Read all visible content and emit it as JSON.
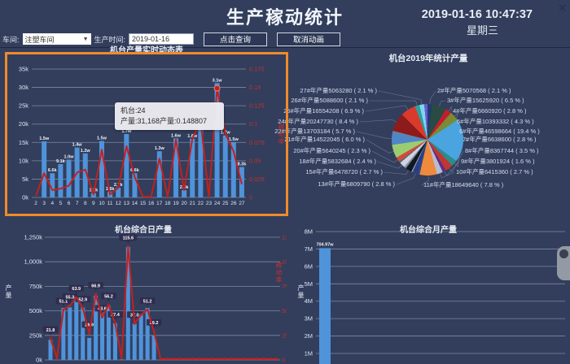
{
  "icons": {
    "close": "✕",
    "caret": "▼",
    "circle": ""
  },
  "header": {
    "title": "生产稼动统计",
    "datetime": "2019-01-16 10:47:37",
    "weekday": "星期三"
  },
  "controls": {
    "workshop_label": "车间:",
    "workshop_value": "注塑车间",
    "time_label": "生产时间:",
    "time_value": "2019-01-16",
    "query_button": "点击查询",
    "cancel_button": "取消动画"
  },
  "tooltip": {
    "line1": "机台:24",
    "line2": "产量:31,168产量:0.148807"
  },
  "chart_data": [
    {
      "id": "realtime",
      "type": "bar+line",
      "title": "机台产量实时动态表",
      "categories": [
        "2",
        "3",
        "4",
        "5",
        "6",
        "7",
        "8",
        "9",
        "10",
        "11",
        "12",
        "13",
        "14",
        "15",
        "16",
        "17",
        "18",
        "19",
        "20",
        "21",
        "22",
        "23",
        "24",
        "25",
        "26",
        "27"
      ],
      "bar_series": {
        "name": "产量",
        "values": [
          0,
          15300,
          6600,
          9100,
          10300,
          13600,
          12000,
          1200,
          15400,
          1600,
          2700,
          17300,
          6600,
          0,
          0,
          12600,
          0,
          16100,
          2000,
          16000,
          21000,
          0,
          31168,
          16900,
          15100,
          8300
        ],
        "labels": [
          "",
          "1.5w",
          "6.6k",
          "9.1k",
          "1.0w",
          "1.4w",
          "1.2w",
          "1.2k",
          "1.5w",
          "1.6k",
          "2.7k",
          "1.7w",
          "6.6k",
          "",
          "",
          "1.3w",
          "",
          "1.6w",
          "2.0k",
          "1.6w",
          "2.1w",
          "",
          "3.1w",
          "1.7w",
          "1.5w",
          "8.3k"
        ]
      },
      "line_series": {
        "name": "稼动率",
        "values": [
          0.002,
          0.033,
          0.01,
          0.012,
          0.016,
          0.034,
          0.038,
          0.004,
          0.065,
          0.004,
          0.013,
          0.07,
          0.028,
          0.001,
          0.001,
          0.053,
          0.001,
          0.079,
          0.01,
          0.08,
          0.105,
          0.001,
          0.148807,
          0.087,
          0.063,
          0.018
        ]
      },
      "y_left": {
        "ticks": [
          "35k",
          "30k",
          "25k",
          "20k",
          "15k",
          "10k",
          "5k",
          "0k"
        ],
        "max": 35000
      },
      "y_right": {
        "ticks": [
          "0.175",
          "0.15",
          "0.125",
          "0.1",
          "0.075",
          "0.05",
          "0.025",
          "0"
        ],
        "max": 0.175,
        "label": "稼动率"
      },
      "highlight": {
        "category": "24",
        "value": 31168,
        "rate": 0.148807
      },
      "bar_color": "#4f93da",
      "line_color": "#c4201f"
    },
    {
      "id": "yearly-pie",
      "type": "pie",
      "title": "机台2019年统计产量",
      "slices": [
        {
          "name": "2#",
          "label": "2#年产量5070568 ( 2.1 % )",
          "value": 5070568,
          "pct": 2.1,
          "color": "#1e3d6e",
          "side": "right"
        },
        {
          "name": "3#",
          "label": "3#年产量15625920 ( 6.5 % )",
          "value": 15625920,
          "pct": 6.5,
          "color": "#2a4a44",
          "side": "right"
        },
        {
          "name": "4#",
          "label": "4#年产量6660920 ( 2.8 % )",
          "value": 6660920,
          "pct": 2.8,
          "color": "#bf1e2e",
          "side": "right"
        },
        {
          "name": "5#",
          "label": "5#年产量10393332 ( 4.3 % )",
          "value": 10393332,
          "pct": 4.3,
          "color": "#7c8a33",
          "side": "right"
        },
        {
          "name": "6#",
          "label": "6#年产量46598664 ( 19.4 % )",
          "value": 46598664,
          "pct": 19.4,
          "color": "#4aa4e0",
          "side": "right"
        },
        {
          "name": "7#",
          "label": "7#年产量6638600 ( 2.8 % )",
          "value": 6638600,
          "pct": 2.8,
          "color": "#2e8b8b",
          "side": "right"
        },
        {
          "name": "8#",
          "label": "8#年产量8367744 ( 3.5 % )",
          "value": 8367744,
          "pct": 3.5,
          "color": "#c23531",
          "side": "right"
        },
        {
          "name": "9#",
          "label": "9#年产量3801924 ( 1.6 % )",
          "value": 3801924,
          "pct": 1.6,
          "color": "#5b2d8e",
          "side": "right"
        },
        {
          "name": "10#",
          "label": "10#年产量6415360 ( 2.7 % )",
          "value": 6415360,
          "pct": 2.7,
          "color": "#b8bcd0",
          "side": "right"
        },
        {
          "name": "11#",
          "label": "11#年产量18649640 ( 7.8 % )",
          "value": 18649640,
          "pct": 7.8,
          "color": "#ef8a3c",
          "side": "right"
        },
        {
          "name": "",
          "label": "",
          "pct": 0.6,
          "color": "#44506e",
          "side": null
        },
        {
          "name": "13#",
          "label": "13#年产量6809790 ( 2.8 % )",
          "value": 6809790,
          "pct": 2.8,
          "color": "#27408b",
          "side": "left"
        },
        {
          "name": "",
          "label": "",
          "pct": 0.6,
          "color": "#8d94a6",
          "side": null
        },
        {
          "name": "15#",
          "label": "15#年产量6478720 ( 2.7 % )",
          "value": 6478720,
          "pct": 2.7,
          "color": "#101820",
          "side": "left"
        },
        {
          "name": "",
          "label": "",
          "pct": 0.6,
          "color": "#6b7690",
          "side": null
        },
        {
          "name": "",
          "label": "",
          "pct": 0.6,
          "color": "#9aa2b8",
          "side": null
        },
        {
          "name": "18#",
          "label": "18#年产量5832684 ( 2.4 % )",
          "value": 5832684,
          "pct": 2.4,
          "color": "#d0d4dd",
          "side": "left"
        },
        {
          "name": "",
          "label": "",
          "pct": 0.6,
          "color": "#55607e",
          "side": null
        },
        {
          "name": "20#",
          "label": "20#年产量5640245 ( 2.3 % )",
          "value": 5640245,
          "pct": 2.3,
          "color": "#d14a3a",
          "side": "left"
        },
        {
          "name": "21#",
          "label": "21#年产量14522045 ( 6.0 % )",
          "value": 14522045,
          "pct": 6.0,
          "color": "#9ccc72",
          "side": "left"
        },
        {
          "name": "22#",
          "label": "22#年产量13703184 ( 5.7 % )",
          "value": 13703184,
          "pct": 5.7,
          "color": "#4f86c6",
          "side": "left"
        },
        {
          "name": "",
          "label": "",
          "pct": 0.6,
          "color": "#77829c",
          "side": null
        },
        {
          "name": "24#",
          "label": "24#年产量20247730 ( 8.4 % )",
          "value": 20247730,
          "pct": 8.4,
          "color": "#8e1b1b",
          "side": "left"
        },
        {
          "name": "25#",
          "label": "25#年产量16554208 ( 6.9 % )",
          "value": 16554208,
          "pct": 6.9,
          "color": "#d93a2b",
          "side": "left"
        },
        {
          "name": "26#",
          "label": "26#年产量5088600 ( 2.1 % )",
          "value": 5088600,
          "pct": 2.1,
          "color": "#2f9e9e",
          "side": "left"
        },
        {
          "name": "27#",
          "label": "27#年产量5063280 ( 2.1 % )",
          "value": 5063280,
          "pct": 2.1,
          "color": "#7fd4f0",
          "side": "left"
        },
        {
          "name": "",
          "label": "",
          "pct": 1.5,
          "color": "#6a5acd",
          "side": null
        }
      ]
    },
    {
      "id": "daily",
      "type": "bar+line",
      "title": "机台综合日产量",
      "ylabel": "产量",
      "bar_series": {
        "name": "产量",
        "values": [
          205000,
          0,
          530000,
          535000,
          640000,
          535000,
          225000,
          655000,
          490000,
          550000,
          375000,
          5000,
          1150000,
          370000,
          460000,
          530000,
          250000,
          0,
          0,
          0,
          0,
          0,
          0,
          0,
          0,
          0,
          0,
          0,
          0,
          0,
          0,
          0,
          0,
          0,
          0,
          0
        ]
      },
      "line_series": {
        "name": "稼动率",
        "values": [
          21.8,
          2,
          51.1,
          55.3,
          63.9,
          52.9,
          26.9,
          66.9,
          43.6,
          56.2,
          37.4,
          2,
          115.6,
          37.0,
          46.0,
          51.2,
          29.2,
          1,
          1,
          1,
          1,
          1,
          1,
          1,
          1,
          1,
          1,
          1,
          1,
          1,
          1,
          1,
          1,
          1,
          1,
          1
        ]
      },
      "point_labels": {
        "0": "21.8",
        "2": "51.1",
        "3": "55.3",
        "4": "63.9",
        "5": "52.9",
        "6": "26.9",
        "7": "66.9",
        "8": "43.6",
        "9": "56.2",
        "10": "37.4",
        "12": "115.6",
        "13": "37.0",
        "15": "51.2",
        "16": "29.2"
      },
      "y_left": {
        "ticks": [
          "1,250k",
          "1,000k",
          "750k",
          "500k",
          "250k",
          "0k"
        ],
        "max": 1250000
      },
      "y_right": {
        "ticks": [
          "125",
          "100",
          "75",
          "50",
          "25",
          "0"
        ],
        "max": 125,
        "label": "稼动率"
      },
      "bar_color": "#4f93da",
      "line_color": "#c4201f"
    },
    {
      "id": "monthly",
      "type": "bar",
      "title": "机台综合月产量",
      "ylabel": "产量",
      "bar_series": {
        "name": "产量",
        "values": [
          7049700
        ],
        "labels": [
          "704.97w"
        ]
      },
      "y_left": {
        "ticks": [
          "8M",
          "7M",
          "6M",
          "5M",
          "4M",
          "3M",
          "2M",
          "1M"
        ],
        "max": 8000000
      },
      "bar_color": "#4f93da"
    }
  ]
}
